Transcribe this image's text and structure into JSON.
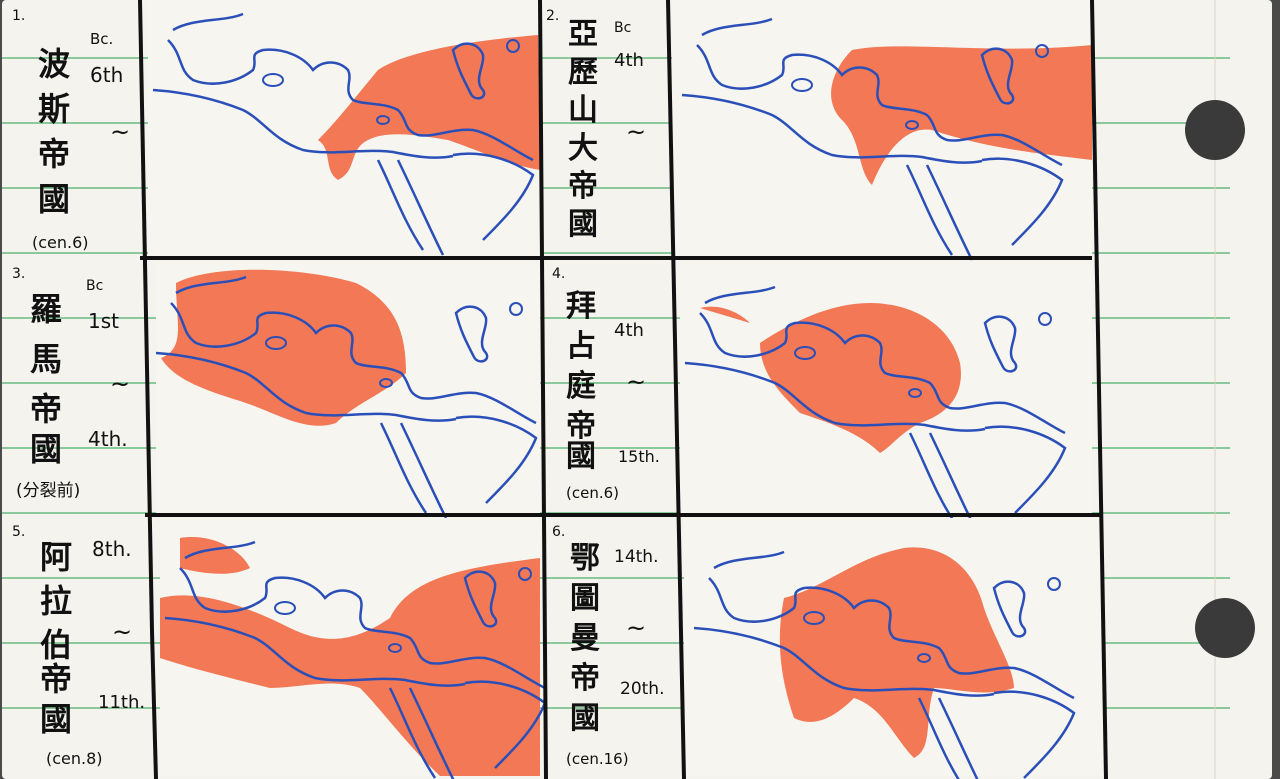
{
  "card": {
    "colors": {
      "paper": "#f4f3ee",
      "ruled_line": "#4caf6b",
      "coast": "#2b4fb8",
      "empire_fill": "#f26a45",
      "ink": "#111111"
    }
  },
  "panels": [
    {
      "index": "1.",
      "name": "波斯帝國",
      "chars": [
        "波",
        "斯",
        "帝",
        "國"
      ],
      "start_era": "Bc.",
      "start_century": "6th",
      "tilde": "~",
      "end_century": "",
      "note": "(cen.6)"
    },
    {
      "index": "2.",
      "name": "亞歷山大帝國",
      "chars": [
        "亞",
        "歷",
        "山",
        "大",
        "帝",
        "國"
      ],
      "start_era": "Bc",
      "start_century": "4th",
      "tilde": "~",
      "end_century": "",
      "note": ""
    },
    {
      "index": "3.",
      "name": "羅馬帝國",
      "chars": [
        "羅",
        "馬",
        "帝",
        "國"
      ],
      "start_era": "Bc",
      "start_century": "1st",
      "tilde": "~",
      "end_century": "4th.",
      "note": "(分裂前)"
    },
    {
      "index": "4.",
      "name": "拜占庭帝國",
      "chars": [
        "拜",
        "占",
        "庭",
        "帝",
        "國"
      ],
      "start_era": "",
      "start_century": "4th",
      "tilde": "~",
      "end_century": "15th.",
      "note": "(cen.6)"
    },
    {
      "index": "5.",
      "name": "阿拉伯帝國",
      "chars": [
        "阿",
        "拉",
        "伯",
        "帝",
        "國"
      ],
      "start_era": "",
      "start_century": "8th.",
      "tilde": "~",
      "end_century": "11th.",
      "note": "(cen.8)"
    },
    {
      "index": "6.",
      "name": "鄂圖曼帝國",
      "chars": [
        "鄂",
        "圖",
        "曼",
        "帝",
        "國"
      ],
      "start_era": "",
      "start_century": "14th.",
      "tilde": "~",
      "end_century": "20th.",
      "note": "(cen.16)"
    }
  ],
  "icons": [
    "punch-hole-icon",
    "map-icon"
  ]
}
